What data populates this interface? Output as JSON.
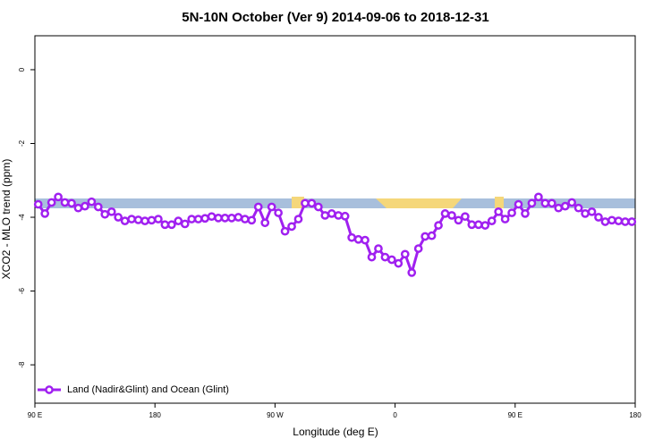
{
  "chart_data": {
    "type": "line",
    "title": "5N-10N October (Ver 9)   2014-09-06 to 2018-12-31",
    "x_label": "Longitude (deg E)",
    "y_label": "XCO2 - MLO trend (ppm)",
    "xlim": [
      90,
      540
    ],
    "xticks": [
      {
        "value": 90,
        "label": "90 E"
      },
      {
        "value": 180,
        "label": "180"
      },
      {
        "value": 270,
        "label": "90 W"
      },
      {
        "value": 360,
        "label": "0"
      },
      {
        "value": 450,
        "label": "90 E"
      },
      {
        "value": 540,
        "label": "180"
      }
    ],
    "ylim": [
      -9.04,
      0.92
    ],
    "yticks": [
      -8,
      -6,
      -4,
      -2,
      0
    ],
    "legend": "bottom-left",
    "x": [
      92.5,
      97.5,
      102.5,
      107.5,
      112.5,
      117.5,
      122.5,
      127.5,
      132.5,
      137.5,
      142.5,
      147.5,
      152.5,
      157.5,
      162.5,
      167.5,
      172.5,
      177.5,
      182.5,
      187.5,
      192.5,
      197.5,
      202.5,
      207.5,
      212.5,
      217.5,
      222.5,
      227.5,
      232.5,
      237.5,
      242.5,
      247.5,
      252.5,
      257.5,
      262.5,
      267.5,
      272.5,
      277.5,
      282.5,
      287.5,
      292.5,
      297.5,
      302.5,
      307.5,
      312.5,
      317.5,
      322.5,
      327.5,
      332.5,
      337.5,
      342.5,
      347.5,
      352.5,
      357.5,
      362.5,
      367.5,
      372.5,
      377.5,
      382.5,
      387.5,
      392.5,
      397.5,
      402.5,
      407.5,
      412.5,
      417.5,
      422.5,
      427.5,
      432.5,
      437.5,
      442.5,
      447.5,
      452.5,
      457.5,
      462.5,
      467.5,
      472.5,
      477.5,
      482.5,
      487.5,
      492.5,
      497.5,
      502.5,
      507.5,
      512.5,
      517.5,
      522.5,
      527.5,
      532.5,
      537.5
    ],
    "series": [
      {
        "name": "Land (Nadir&Glint) and Ocean (Glint)",
        "color": "#a020f0",
        "values": [
          -3.65,
          -3.9,
          -3.6,
          -3.45,
          -3.6,
          -3.62,
          -3.75,
          -3.7,
          -3.58,
          -3.72,
          -3.92,
          -3.85,
          -4.0,
          -4.1,
          -4.05,
          -4.07,
          -4.1,
          -4.08,
          -4.05,
          -4.2,
          -4.2,
          -4.1,
          -4.18,
          -4.05,
          -4.05,
          -4.03,
          -3.98,
          -4.02,
          -4.02,
          -4.02,
          -4.0,
          -4.05,
          -4.08,
          -3.72,
          -4.15,
          -3.72,
          -3.88,
          -4.38,
          -4.25,
          -4.05,
          -3.62,
          -3.62,
          -3.72,
          -3.95,
          -3.9,
          -3.95,
          -3.97,
          -4.55,
          -4.6,
          -4.62,
          -5.08,
          -4.85,
          -5.08,
          -5.15,
          -5.25,
          -5.0,
          -5.5,
          -4.85,
          -4.52,
          -4.5,
          -4.22,
          -3.9,
          -3.95,
          -4.08,
          -3.98,
          -4.2,
          -4.2,
          -4.22,
          -4.1,
          -3.85,
          -4.05,
          -3.88,
          -3.65,
          -3.9,
          -3.62,
          -3.45,
          -3.62,
          -3.62,
          -3.75,
          -3.7,
          -3.6,
          -3.75,
          -3.9,
          -3.85,
          -4.0,
          -4.12,
          -4.08,
          -4.1,
          -4.12,
          -4.12
        ]
      }
    ]
  }
}
